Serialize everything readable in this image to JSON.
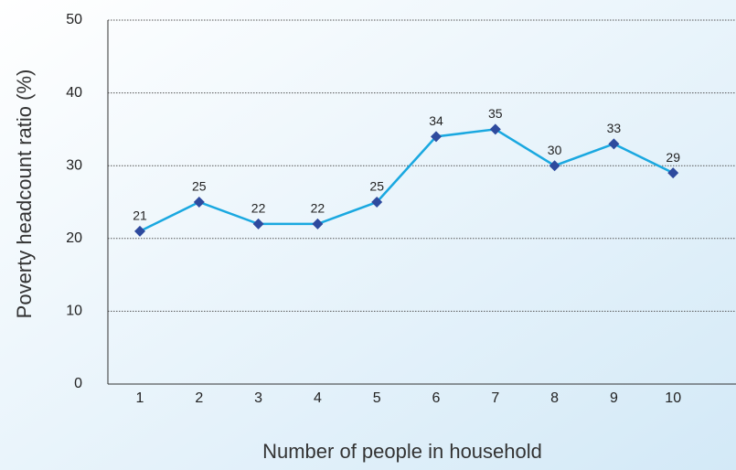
{
  "chart_data": {
    "type": "line",
    "x_label": "Number of people in household",
    "y_label": "Poverty headcount ratio (%)",
    "categories": [
      "1",
      "2",
      "3",
      "4",
      "5",
      "6",
      "7",
      "8",
      "9",
      "10"
    ],
    "series": [
      {
        "name": "Poverty headcount ratio",
        "color": "#1aa8e0",
        "marker_color": "#2e4a9e",
        "values": [
          21,
          25,
          22,
          22,
          25,
          34,
          35,
          30,
          33,
          29
        ]
      }
    ],
    "ylim": [
      0,
      50
    ],
    "yticks": [
      0,
      10,
      20,
      30,
      40,
      50
    ],
    "grid": true
  }
}
